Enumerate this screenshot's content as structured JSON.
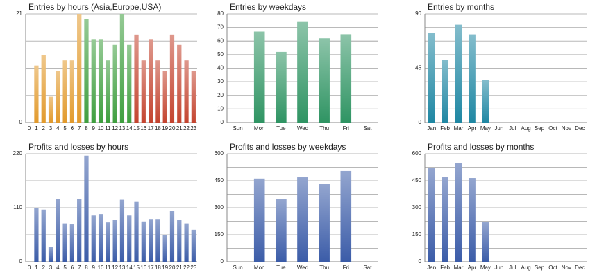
{
  "chart_data": [
    {
      "type": "bar",
      "title": "Entries by hours (Asia,Europe,USA)",
      "categories": [
        "0",
        "1",
        "2",
        "3",
        "4",
        "5",
        "6",
        "7",
        "8",
        "9",
        "10",
        "11",
        "12",
        "13",
        "14",
        "15",
        "16",
        "17",
        "18",
        "19",
        "20",
        "21",
        "22",
        "23"
      ],
      "values": [
        0,
        11,
        13,
        5,
        10,
        12,
        12,
        21,
        20,
        16,
        16,
        12,
        15,
        21,
        15,
        17,
        12,
        16,
        12,
        10,
        17,
        15,
        12,
        10
      ],
      "colors": [
        "#e29a2c",
        "#e29a2c",
        "#e29a2c",
        "#e29a2c",
        "#e29a2c",
        "#e29a2c",
        "#e29a2c",
        "#e29a2c",
        "#3f9f3f",
        "#3f9f3f",
        "#3f9f3f",
        "#3f9f3f",
        "#3f9f3f",
        "#3f9f3f",
        "#3f9f3f",
        "#c4442f",
        "#c4442f",
        "#c4442f",
        "#c4442f",
        "#c4442f",
        "#c4442f",
        "#c4442f",
        "#c4442f",
        "#c4442f"
      ],
      "ylim": [
        0,
        21
      ],
      "yticks": [
        0,
        21
      ],
      "grid": true,
      "grid_divisions": 4
    },
    {
      "type": "bar",
      "title": "Entries by weekdays",
      "categories": [
        "Sun",
        "Mon",
        "Tue",
        "Wed",
        "Thu",
        "Fri",
        "Sat"
      ],
      "values": [
        0,
        67,
        52,
        74,
        62,
        65,
        0
      ],
      "color": "#2f9463",
      "ylim": [
        0,
        80
      ],
      "yticks": [
        0,
        10,
        20,
        30,
        40,
        50,
        60,
        70,
        80
      ],
      "grid": true,
      "grid_divisions": 8
    },
    {
      "type": "bar",
      "title": "Entries by months",
      "categories": [
        "Jan",
        "Feb",
        "Mar",
        "Apr",
        "May",
        "Jun",
        "Jul",
        "Aug",
        "Sep",
        "Oct",
        "Nov",
        "Dec"
      ],
      "values": [
        74,
        52,
        81,
        73,
        35,
        0,
        0,
        0,
        0,
        0,
        0,
        0
      ],
      "color": "#1f87a3",
      "ylim": [
        0,
        90
      ],
      "yticks": [
        0,
        45,
        90
      ],
      "grid": true,
      "grid_divisions": 8
    },
    {
      "type": "bar",
      "title": "Profits and losses by hours",
      "categories": [
        "0",
        "1",
        "2",
        "3",
        "4",
        "5",
        "6",
        "7",
        "8",
        "9",
        "10",
        "11",
        "12",
        "13",
        "14",
        "15",
        "16",
        "17",
        "18",
        "19",
        "20",
        "21",
        "22",
        "23"
      ],
      "values": [
        0,
        110,
        106,
        30,
        128,
        78,
        76,
        128,
        216,
        94,
        97,
        80,
        85,
        126,
        94,
        123,
        82,
        87,
        87,
        54,
        103,
        85,
        78,
        65
      ],
      "color": "#3b5ca8",
      "ylim": [
        0,
        220
      ],
      "yticks": [
        0,
        110,
        220
      ],
      "grid": true,
      "grid_divisions": 4
    },
    {
      "type": "bar",
      "title": "Profits and losses by weekdays",
      "categories": [
        "Sun",
        "Mon",
        "Tue",
        "Wed",
        "Thu",
        "Fri",
        "Sat"
      ],
      "values": [
        0,
        462,
        346,
        469,
        431,
        504,
        0
      ],
      "color": "#3b5ca8",
      "ylim": [
        0,
        600
      ],
      "yticks": [
        0,
        150,
        300,
        450,
        600
      ],
      "grid": true,
      "grid_divisions": 8
    },
    {
      "type": "bar",
      "title": "Profits and losses by months",
      "categories": [
        "Jan",
        "Feb",
        "Mar",
        "Apr",
        "May",
        "Jun",
        "Jul",
        "Aug",
        "Sep",
        "Oct",
        "Nov",
        "Dec"
      ],
      "values": [
        519,
        469,
        546,
        465,
        219,
        0,
        0,
        0,
        0,
        0,
        0,
        0
      ],
      "color": "#3b5ca8",
      "ylim": [
        0,
        600
      ],
      "yticks": [
        0,
        150,
        300,
        450,
        600
      ],
      "grid": true,
      "grid_divisions": 8
    }
  ]
}
